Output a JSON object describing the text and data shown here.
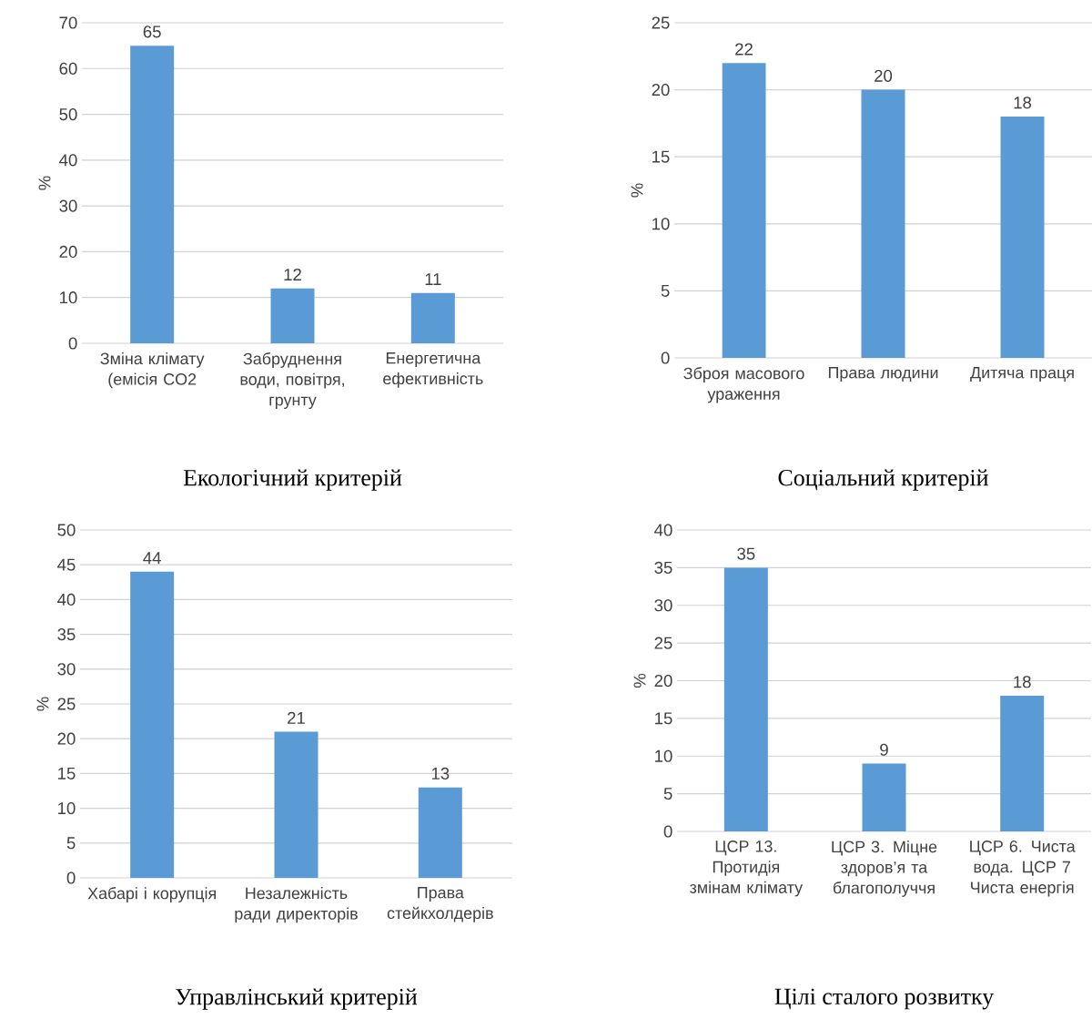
{
  "chart_data": [
    {
      "type": "bar",
      "title": "Екологічний критерій",
      "ylabel": "%",
      "categories": [
        "Зміна клімату (емісія CO2",
        "Забруднення води, повітря, грунту",
        "Енергетична ефективність"
      ],
      "values": [
        65,
        12,
        11
      ],
      "color": "#5b9bd5",
      "ylim": [
        0,
        70
      ],
      "yticks": [
        0,
        10,
        20,
        30,
        40,
        50,
        60,
        70
      ],
      "grid": "y",
      "data_labels": true
    },
    {
      "type": "bar",
      "title": "Соціальний критерій",
      "ylabel": "%",
      "categories": [
        "Зброя масового ураження",
        "Права людини",
        "Дитяча праця"
      ],
      "values": [
        22,
        20,
        18
      ],
      "color": "#5b9bd5",
      "ylim": [
        0,
        25
      ],
      "yticks": [
        0,
        5,
        10,
        15,
        20,
        25
      ],
      "grid": "y",
      "data_labels": true
    },
    {
      "type": "bar",
      "title": "Управлінський критерій",
      "ylabel": "%",
      "categories": [
        "Хабарі і корупція",
        "Незалежність ради директорів",
        "Права стейкхолдерів"
      ],
      "values": [
        44,
        21,
        13
      ],
      "color": "#5b9bd5",
      "ylim": [
        0,
        50
      ],
      "yticks": [
        0,
        5,
        10,
        15,
        20,
        25,
        30,
        35,
        40,
        45,
        50
      ],
      "grid": "y",
      "data_labels": true
    },
    {
      "type": "bar",
      "title": "Цілі сталого розвитку",
      "ylabel": "%",
      "categories": [
        "ЦСР 13. Протидія змінам клімату",
        "ЦСР 3. Міцне здоров’я та благополуччя",
        "ЦСР 6. Чиста вода. ЦСР 7 Чиста енергія"
      ],
      "values": [
        35,
        9,
        18
      ],
      "color": "#5b9bd5",
      "ylim": [
        0,
        40
      ],
      "yticks": [
        0,
        5,
        10,
        15,
        20,
        25,
        30,
        35,
        40
      ],
      "grid": "y",
      "data_labels": true
    }
  ]
}
